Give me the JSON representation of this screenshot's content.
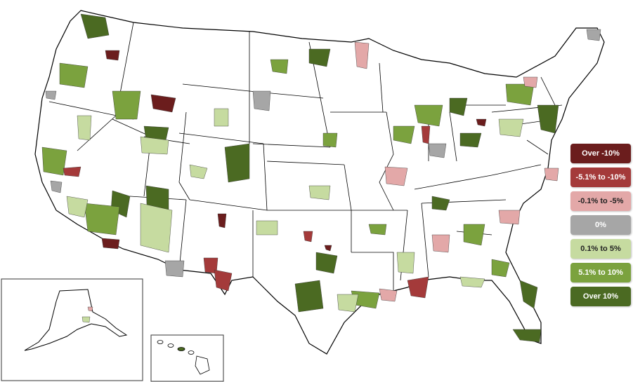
{
  "legend": {
    "items": [
      {
        "label": "Over -10%",
        "color": "#6b1d1d",
        "text_color": "#ffffff"
      },
      {
        "label": "-5.1% to -10%",
        "color": "#a43a3a",
        "text_color": "#ffffff"
      },
      {
        "label": "-0.1% to -5%",
        "color": "#e3a8a8",
        "text_color": "#222222"
      },
      {
        "label": "0%",
        "color": "#a6a6a6",
        "text_color": "#ffffff"
      },
      {
        "label": "0.1% to 5%",
        "color": "#c6dba0",
        "text_color": "#222222"
      },
      {
        "label": "5.1% to 10%",
        "color": "#7ba23e",
        "text_color": "#ffffff"
      },
      {
        "label": "Over 10%",
        "color": "#4b6a22",
        "text_color": "#ffffff"
      }
    ]
  },
  "map": {
    "border_color": "#000000",
    "inset_regions": [
      "alaska",
      "hawaii"
    ]
  }
}
